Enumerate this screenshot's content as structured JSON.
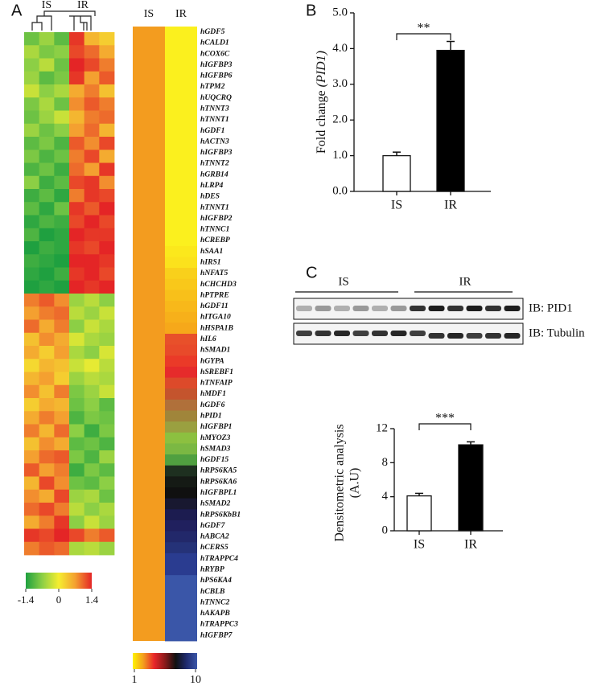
{
  "chart_data": [
    {
      "type": "heatmap",
      "panel": "A",
      "columns": [
        "IS",
        "IR"
      ],
      "values": [
        [
          -0.9,
          -0.6,
          -1.0,
          1.3,
          0.5,
          0.3
        ],
        [
          -0.5,
          -0.8,
          -0.7,
          1.2,
          1.0,
          0.6
        ],
        [
          -0.7,
          -0.4,
          -0.9,
          1.4,
          1.2,
          0.9
        ],
        [
          -0.6,
          -1.0,
          -0.8,
          1.3,
          0.7,
          1.1
        ],
        [
          -0.3,
          -0.7,
          -0.5,
          0.6,
          0.9,
          0.4
        ],
        [
          -0.8,
          -0.5,
          -0.9,
          0.8,
          1.1,
          0.9
        ],
        [
          -0.9,
          -0.6,
          -0.3,
          0.5,
          0.9,
          1.0
        ],
        [
          -0.6,
          -0.9,
          -0.7,
          0.7,
          1.0,
          0.5
        ],
        [
          -1.0,
          -0.8,
          -1.1,
          1.1,
          0.8,
          1.2
        ],
        [
          -0.8,
          -1.1,
          -0.9,
          0.9,
          1.2,
          0.6
        ],
        [
          -1.1,
          -0.9,
          -1.2,
          1.0,
          0.7,
          1.3
        ],
        [
          -0.7,
          -1.2,
          -1.0,
          1.2,
          1.3,
          0.8
        ],
        [
          -1.2,
          -1.0,
          -1.3,
          0.9,
          1.3,
          1.2
        ],
        [
          -1.0,
          -1.3,
          -0.9,
          1.3,
          1.1,
          1.4
        ],
        [
          -1.3,
          -1.1,
          -1.2,
          1.2,
          1.4,
          1.2
        ],
        [
          -1.1,
          -1.4,
          -1.3,
          1.4,
          1.3,
          1.3
        ],
        [
          -1.4,
          -1.2,
          -1.3,
          1.3,
          1.2,
          1.4
        ],
        [
          -1.2,
          -1.3,
          -1.4,
          1.4,
          1.4,
          1.3
        ],
        [
          -1.3,
          -1.4,
          -1.2,
          1.3,
          1.4,
          1.2
        ],
        [
          -1.4,
          -1.3,
          -1.4,
          1.4,
          1.3,
          1.4
        ],
        [
          0.9,
          1.1,
          0.8,
          -0.6,
          -0.4,
          -0.7
        ],
        [
          0.7,
          0.9,
          1.0,
          -0.4,
          -0.6,
          -0.3
        ],
        [
          1.0,
          0.6,
          0.9,
          -0.7,
          -0.3,
          -0.5
        ],
        [
          0.4,
          0.8,
          0.6,
          -0.2,
          -0.5,
          -0.6
        ],
        [
          0.6,
          0.3,
          0.7,
          -0.5,
          -0.7,
          -0.2
        ],
        [
          0.2,
          0.5,
          0.4,
          -0.3,
          -0.1,
          -0.4
        ],
        [
          0.5,
          0.7,
          0.3,
          -0.6,
          -0.4,
          -0.5
        ],
        [
          0.8,
          0.4,
          0.9,
          -0.8,
          -0.6,
          -0.3
        ],
        [
          0.3,
          0.6,
          0.5,
          -0.9,
          -0.7,
          -1.0
        ],
        [
          0.6,
          0.9,
          0.7,
          -1.1,
          -0.8,
          -0.9
        ],
        [
          0.9,
          0.5,
          1.0,
          -0.7,
          -1.2,
          -0.8
        ],
        [
          0.4,
          0.8,
          0.6,
          -1.0,
          -0.9,
          -1.1
        ],
        [
          0.7,
          1.0,
          1.1,
          -0.8,
          -1.1,
          -0.6
        ],
        [
          1.1,
          0.7,
          0.9,
          -1.2,
          -0.8,
          -1.0
        ],
        [
          0.5,
          1.2,
          0.8,
          -0.9,
          -1.0,
          -0.7
        ],
        [
          0.8,
          0.6,
          1.2,
          -0.6,
          -0.5,
          -0.9
        ],
        [
          1.0,
          1.2,
          0.9,
          -0.4,
          -0.7,
          -0.5
        ],
        [
          0.6,
          0.9,
          1.3,
          -0.7,
          -0.3,
          -0.6
        ],
        [
          1.3,
          1.2,
          1.4,
          1.2,
          0.9,
          1.1
        ],
        [
          0.9,
          1.1,
          1.0,
          -0.5,
          -0.4,
          -0.6
        ]
      ],
      "colormap": [
        "#1fa040",
        "#8ccf45",
        "#f5ee30",
        "#f4a030",
        "#e42526"
      ],
      "zlim": [
        -1.4,
        1.4
      ],
      "zticks": [
        -1.4,
        0,
        1.4
      ]
    },
    {
      "type": "heatmap",
      "columns": [
        "IS",
        "IR"
      ],
      "rows": [
        "hGDF5",
        "hCALD1",
        "hCOX6C",
        "hIGFBP3",
        "hIGFBP6",
        "hTPM2",
        "hUQCRQ",
        "hTNNT3",
        "hTNNT1",
        "hGDF1",
        "hACTN3",
        "hIGFBP3",
        "hTNNT2",
        "hGRB14",
        "hLRP4",
        "hDES",
        "hTNNT1",
        "hIGFBP2",
        "hTNNC1",
        "hCREBP",
        "hSAA1",
        "hIRS1",
        "hNFAT5",
        "hCHCHD3",
        "hPTPRE",
        "hGDF11",
        "hITGA10",
        "hHSPA1B",
        "hIL6",
        "hSMAD1",
        "hGYPA",
        "hSREBF1",
        "hTNFAIP",
        "hMDF1",
        "hGDF6",
        "hPID1",
        "hIGFBP1",
        "hMYOZ3",
        "hSMAD3",
        "hGDF15",
        "hRPS6KA5",
        "hRPS6KA6",
        "hIGFBPL1",
        "hSMAD2",
        "hRPS6KbB1",
        "hGDF7",
        "hABCA2",
        "hCERS5",
        "hTRAPPC4",
        "hRYBP",
        "hPS6KA4",
        "hCBLB",
        "hTNNC2",
        "hAKAPB",
        "hTRAPPC3",
        "hIGFBP7"
      ],
      "is_color": "#f39c1f",
      "ir_colors": [
        "#fbf01e",
        "#fbf01e",
        "#fbf01e",
        "#fbf01e",
        "#fbf01e",
        "#fbf01e",
        "#fbf01e",
        "#fbf01e",
        "#fbf01e",
        "#fbf01e",
        "#fbf01e",
        "#fbf01e",
        "#fbf01e",
        "#fbf01e",
        "#fbf01e",
        "#fbf01e",
        "#fbf01e",
        "#fbf01e",
        "#fbf01e",
        "#fbf01e",
        "#fbe81c",
        "#fbe21c",
        "#f9d01b",
        "#f9c81a",
        "#f8c01a",
        "#f8b81a",
        "#f7b01a",
        "#f6a81a",
        "#e8502a",
        "#e84a2a",
        "#ea3a28",
        "#e62b2b",
        "#dd4a2a",
        "#c4542d",
        "#b0703a",
        "#a0853a",
        "#9aa040",
        "#8cc040",
        "#7bb843",
        "#50a040",
        "#1e3020",
        "#151a15",
        "#101010",
        "#181830",
        "#1c1c50",
        "#20205e",
        "#22286a",
        "#253278",
        "#2a3c90",
        "#2a3c90",
        "#3a56a8",
        "#3a56a8",
        "#3a56a8",
        "#3a56a8",
        "#3a56a8",
        "#3a56a8"
      ],
      "colorbar_colors": [
        "#fff200",
        "#f39c1f",
        "#e8262a",
        "#8b1a1a",
        "#111111",
        "#1f2a6e",
        "#3a56a8"
      ],
      "clim": [
        1,
        10
      ],
      "cticks": [
        1,
        10
      ]
    },
    {
      "type": "bar",
      "panel": "B",
      "categories": [
        "IS",
        "IR"
      ],
      "values": [
        1.0,
        3.95
      ],
      "errors": [
        0.1,
        0.25
      ],
      "colors": [
        "#ffffff",
        "#000000"
      ],
      "y_label": "Fold change",
      "y_label_italic": "(PID1)",
      "significance": "**",
      "ylim": [
        0,
        5
      ],
      "yticks": [
        {
          "value": 0,
          "label": "0.0"
        },
        {
          "value": 1,
          "label": "1.0"
        },
        {
          "value": 2,
          "label": "2.0"
        },
        {
          "value": 3,
          "label": "3.0"
        },
        {
          "value": 4,
          "label": "4.0"
        },
        {
          "value": 5,
          "label": "5.0"
        }
      ]
    },
    {
      "type": "blot",
      "panel": "C",
      "groups": [
        "IS",
        "IR"
      ],
      "rows": [
        "IB: PID1",
        "IB: Tubulin"
      ]
    },
    {
      "type": "bar",
      "categories": [
        "IS",
        "IR"
      ],
      "values": [
        4.1,
        10.1
      ],
      "errors": [
        0.3,
        0.35
      ],
      "colors": [
        "#ffffff",
        "#000000"
      ],
      "y_label": "Densitometric analysis",
      "y_label_2": "(A.U)",
      "significance": "***",
      "ylim": [
        0,
        12
      ],
      "yticks": [
        0,
        4,
        8,
        12
      ]
    }
  ]
}
